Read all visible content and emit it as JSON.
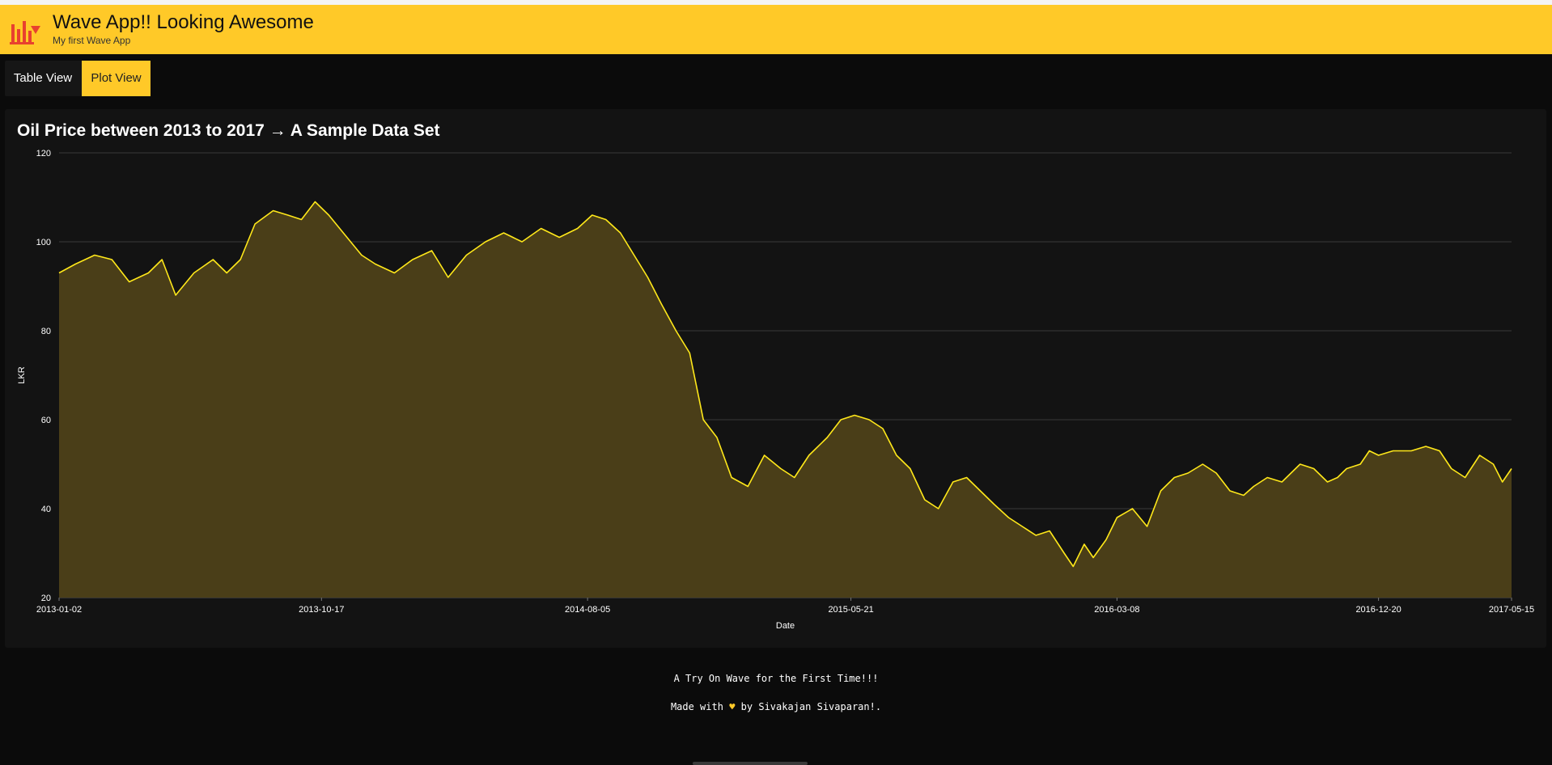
{
  "header": {
    "title": "Wave App!! Looking Awesome",
    "subtitle": "My first Wave App",
    "logo_icon": "bar-chart-logo-icon",
    "accent_color": "#ffc928"
  },
  "tabs": [
    {
      "label": "Table View",
      "selected": false
    },
    {
      "label": "Plot View",
      "selected": true
    }
  ],
  "card": {
    "title": "Oil Price between 2013 to 2017 → A Sample Data Set"
  },
  "chart_data": {
    "type": "area",
    "title": "Oil Price between 2013 to 2017 → A Sample Data Set",
    "xlabel": "Date",
    "ylabel": "LKR",
    "ylim": [
      20,
      120
    ],
    "yticks": [
      20,
      40,
      60,
      80,
      100,
      120
    ],
    "xlim": [
      "2013-01-02",
      "2017-05-15"
    ],
    "xticks": [
      "2013-01-02",
      "2013-10-17",
      "2014-08-05",
      "2015-05-21",
      "2016-03-08",
      "2016-12-20",
      "2017-05-15"
    ],
    "grid": true,
    "line_color": "#ffe81a",
    "fill_color": "#4a3e18",
    "series": [
      {
        "x": [
          "2013-01-02",
          "2013-01-20",
          "2013-02-10",
          "2013-03-01",
          "2013-03-20",
          "2013-04-10",
          "2013-04-25",
          "2013-05-10",
          "2013-05-30",
          "2013-06-20",
          "2013-07-05",
          "2013-07-20",
          "2013-08-05",
          "2013-08-25",
          "2013-09-10",
          "2013-09-25",
          "2013-10-10",
          "2013-10-25",
          "2013-11-10",
          "2013-11-30",
          "2013-12-15",
          "2014-01-05",
          "2014-01-25",
          "2014-02-15",
          "2014-03-05",
          "2014-03-25",
          "2014-04-15",
          "2014-05-05",
          "2014-05-25",
          "2014-06-15",
          "2014-07-05",
          "2014-07-25",
          "2014-08-10",
          "2014-08-25",
          "2014-09-10",
          "2014-09-25",
          "2014-10-10",
          "2014-10-25",
          "2014-11-10",
          "2014-11-25",
          "2014-12-10",
          "2014-12-25",
          "2015-01-10",
          "2015-01-28",
          "2015-02-15",
          "2015-03-05",
          "2015-03-20",
          "2015-04-05",
          "2015-04-25",
          "2015-05-10",
          "2015-05-25",
          "2015-06-10",
          "2015-06-25",
          "2015-07-10",
          "2015-07-25",
          "2015-08-10",
          "2015-08-25",
          "2015-09-10",
          "2015-09-25",
          "2015-10-10",
          "2015-10-25",
          "2015-11-10",
          "2015-11-25",
          "2015-12-10",
          "2015-12-25",
          "2016-01-10",
          "2016-01-20",
          "2016-02-01",
          "2016-02-11",
          "2016-02-25",
          "2016-03-08",
          "2016-03-25",
          "2016-04-10",
          "2016-04-25",
          "2016-05-10",
          "2016-05-25",
          "2016-06-10",
          "2016-06-25",
          "2016-07-10",
          "2016-07-25",
          "2016-08-05",
          "2016-08-20",
          "2016-09-05",
          "2016-09-25",
          "2016-10-10",
          "2016-10-25",
          "2016-11-05",
          "2016-11-15",
          "2016-11-30",
          "2016-12-10",
          "2016-12-20",
          "2017-01-05",
          "2017-01-25",
          "2017-02-10",
          "2017-02-25",
          "2017-03-10",
          "2017-03-25",
          "2017-04-10",
          "2017-04-25",
          "2017-05-05",
          "2017-05-15"
        ],
        "y": [
          93,
          95,
          97,
          96,
          91,
          93,
          96,
          88,
          93,
          96,
          93,
          96,
          104,
          107,
          106,
          105,
          109,
          106,
          102,
          97,
          95,
          93,
          96,
          98,
          92,
          97,
          100,
          102,
          100,
          103,
          101,
          103,
          106,
          105,
          102,
          97,
          92,
          86,
          80,
          75,
          60,
          56,
          47,
          45,
          52,
          49,
          47,
          52,
          56,
          60,
          61,
          60,
          58,
          52,
          49,
          42,
          40,
          46,
          47,
          44,
          41,
          38,
          36,
          34,
          35,
          30,
          27,
          32,
          29,
          33,
          38,
          40,
          36,
          44,
          47,
          48,
          50,
          48,
          44,
          43,
          45,
          47,
          46,
          50,
          49,
          46,
          47,
          49,
          50,
          53,
          52,
          53,
          53,
          54,
          53,
          49,
          47,
          52,
          50,
          46,
          49
        ]
      }
    ]
  },
  "footer": {
    "line1": "A Try On Wave for the First Time!!!",
    "line2_prefix": "Made with",
    "line2_icon": "heart-icon",
    "line2_suffix": "by Sivakajan Sivaparan!."
  }
}
